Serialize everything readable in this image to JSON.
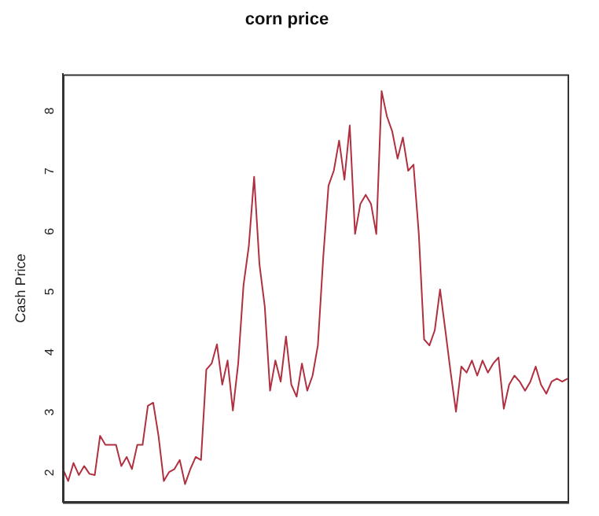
{
  "chart_data": {
    "type": "line",
    "title": "corn price",
    "ylabel": "Cash Price",
    "categories": [
      null,
      null,
      null,
      null,
      null,
      null,
      null,
      null,
      null,
      null,
      null,
      null,
      null,
      null,
      null,
      null,
      null,
      null,
      null,
      null,
      null,
      null,
      null,
      null,
      null,
      null,
      null,
      null,
      null,
      null,
      null,
      null,
      null,
      null,
      null,
      null,
      null,
      null,
      null,
      null,
      null,
      null,
      null,
      null,
      null,
      null,
      null,
      null,
      null,
      null,
      null,
      null,
      null,
      null,
      null,
      null,
      null,
      null,
      null,
      null,
      null,
      null,
      null,
      null,
      null,
      null,
      null,
      null,
      null,
      null,
      null,
      null,
      null,
      null,
      null,
      null,
      null,
      null,
      null,
      null,
      null,
      null,
      null,
      null,
      null,
      null,
      null,
      null,
      null,
      null,
      null,
      null,
      null,
      null,
      null,
      null
    ],
    "series": [
      {
        "color": "#b03040",
        "values": [
          2.0,
          1.8,
          2.1,
          1.9,
          2.05,
          1.92,
          1.9,
          2.55,
          2.4,
          2.4,
          2.4,
          2.05,
          2.2,
          2.0,
          2.4,
          2.4,
          3.05,
          3.1,
          2.55,
          1.8,
          1.95,
          2.0,
          2.15,
          1.75,
          2.0,
          2.2,
          2.15,
          3.65,
          3.75,
          4.07,
          3.4,
          3.8,
          2.97,
          3.75,
          5.05,
          5.7,
          6.85,
          5.4,
          4.7,
          3.3,
          3.8,
          3.45,
          4.2,
          3.4,
          3.2,
          3.75,
          3.3,
          3.55,
          4.05,
          5.5,
          6.7,
          6.95,
          7.45,
          6.8,
          7.7,
          5.9,
          6.4,
          6.55,
          6.4,
          5.9,
          8.27,
          7.85,
          7.6,
          7.15,
          7.5,
          6.95,
          7.05,
          5.9,
          4.15,
          4.05,
          4.3,
          4.98,
          4.3,
          3.6,
          2.95,
          3.7,
          3.6,
          3.8,
          3.55,
          3.8,
          3.6,
          3.75,
          3.85,
          3.0,
          3.4,
          3.55,
          3.45,
          3.3,
          3.45,
          3.7,
          3.4,
          3.25,
          3.45,
          3.5,
          3.45,
          3.5
        ]
      }
    ],
    "ylim": [
      1.45,
      8.55
    ],
    "yticks": [
      2,
      3,
      4,
      5,
      6,
      7,
      8
    ],
    "grid": false,
    "legend": false,
    "marker": "none",
    "line_style": "solid",
    "tick_labels": "y"
  }
}
